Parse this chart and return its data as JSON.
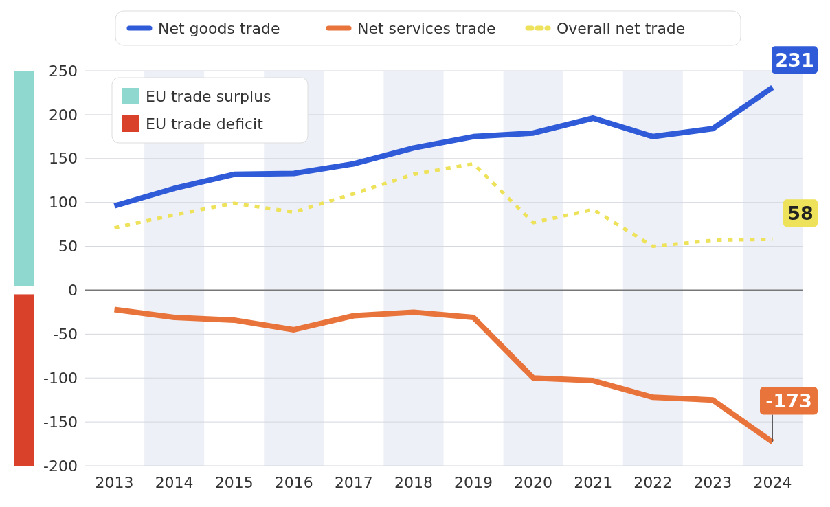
{
  "chart_data": {
    "type": "line",
    "categories": [
      "2013",
      "2014",
      "2015",
      "2016",
      "2017",
      "2018",
      "2019",
      "2020",
      "2021",
      "2022",
      "2023",
      "2024"
    ],
    "series": [
      {
        "name": "Net goods trade",
        "color": "#2f5bd8",
        "values": [
          96,
          116,
          132,
          133,
          144,
          162,
          175,
          179,
          196,
          175,
          184,
          231
        ],
        "value_labels": [
          null,
          null,
          null,
          null,
          null,
          null,
          null,
          null,
          null,
          null,
          null,
          "231"
        ]
      },
      {
        "name": "Net services trade",
        "color": "#e8743b",
        "values": [
          -22,
          -31,
          -34,
          -45,
          -29,
          -25,
          -31,
          -100,
          -103,
          -122,
          -125,
          -173
        ],
        "value_labels": [
          null,
          null,
          null,
          null,
          null,
          null,
          null,
          null,
          null,
          null,
          null,
          "-173"
        ]
      },
      {
        "name": "Overall net trade",
        "color": "#ede25a",
        "line_style": "dotted",
        "values": [
          71,
          86,
          99,
          89,
          110,
          132,
          144,
          77,
          92,
          50,
          57,
          58
        ],
        "value_labels": [
          null,
          null,
          null,
          null,
          null,
          null,
          null,
          null,
          null,
          null,
          null,
          "58"
        ]
      }
    ],
    "annotations": [
      "EU trade surplus",
      "EU trade deficit"
    ],
    "ylim": [
      -200,
      250
    ],
    "yticks": [
      -200,
      -150,
      -100,
      -50,
      0,
      50,
      100,
      150,
      200,
      250
    ],
    "grid": "y",
    "legend": "top",
    "marker": "none",
    "line_style": "solid"
  }
}
